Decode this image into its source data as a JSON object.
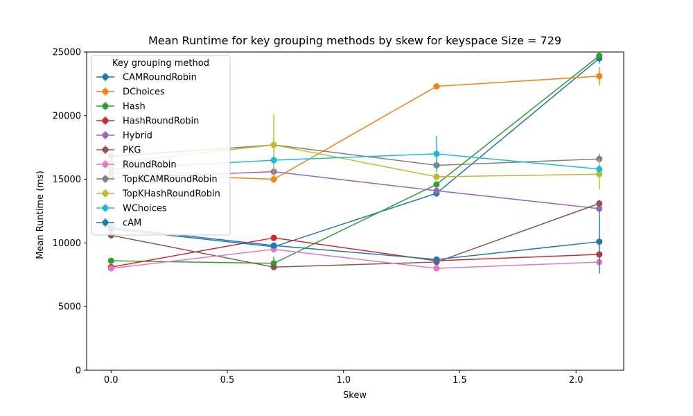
{
  "chart_data": {
    "type": "line",
    "title": "Mean Runtime for key grouping methods by skew for keyspace Size = 729",
    "xlabel": "Skew",
    "ylabel": "Mean Runtime (ms)",
    "xlim": [
      -0.105,
      2.205
    ],
    "ylim": [
      0,
      25000
    ],
    "xticks": [
      0.0,
      0.5,
      1.0,
      1.5,
      2.0
    ],
    "xtick_labels": [
      "0.0",
      "0.5",
      "1.0",
      "1.5",
      "2.0"
    ],
    "yticks": [
      0,
      5000,
      10000,
      15000,
      20000,
      25000
    ],
    "ytick_labels": [
      "0",
      "5000",
      "10000",
      "15000",
      "20000",
      "25000"
    ],
    "grid": false,
    "legend": {
      "title": "Key grouping method",
      "placement": "upper-left"
    },
    "x": [
      0.0,
      0.7,
      1.4,
      2.1
    ],
    "series": [
      {
        "name": "CAMRoundRobin",
        "color": "#1f77b4",
        "values": [
          11100,
          9700,
          13900,
          24500
        ],
        "err": [
          300,
          200,
          300,
          400
        ]
      },
      {
        "name": "DChoices",
        "color": "#ff7f0e",
        "values": [
          15500,
          15000,
          22300,
          23100
        ],
        "err": [
          300,
          300,
          200,
          700
        ]
      },
      {
        "name": "Hash",
        "color": "#2ca02c",
        "values": [
          8600,
          8400,
          14600,
          24700
        ],
        "err": [
          200,
          500,
          200,
          300
        ]
      },
      {
        "name": "HashRoundRobin",
        "color": "#d62728",
        "values": [
          8100,
          10400,
          8600,
          9100
        ],
        "err": [
          200,
          200,
          200,
          200
        ]
      },
      {
        "name": "Hybrid",
        "color": "#9467bd",
        "values": [
          15100,
          15600,
          14100,
          12700
        ],
        "err": [
          300,
          300,
          300,
          300
        ]
      },
      {
        "name": "PKG",
        "color": "#8c564b",
        "values": [
          10600,
          8100,
          8500,
          13100
        ],
        "err": [
          200,
          200,
          200,
          300
        ]
      },
      {
        "name": "RoundRobin",
        "color": "#e377c2",
        "values": [
          8000,
          9500,
          8000,
          8500
        ],
        "err": [
          200,
          200,
          200,
          200
        ]
      },
      {
        "name": "TopKCAMRoundRobin",
        "color": "#7f7f7f",
        "values": [
          16800,
          17700,
          16100,
          16600
        ],
        "err": [
          300,
          300,
          300,
          400
        ]
      },
      {
        "name": "TopKHashRoundRobin",
        "color": "#bcbd22",
        "values": [
          16300,
          17700,
          15200,
          15400
        ],
        "err": [
          300,
          2400,
          300,
          1200
        ]
      },
      {
        "name": "WChoices",
        "color": "#17becf",
        "values": [
          15800,
          16500,
          17000,
          15800
        ],
        "err": [
          300,
          300,
          1400,
          300
        ]
      },
      {
        "name": "cAM",
        "color": "#1f77b4",
        "values": [
          11200,
          9800,
          8700,
          10100
        ],
        "err": [
          400,
          200,
          200,
          2500
        ]
      }
    ]
  }
}
